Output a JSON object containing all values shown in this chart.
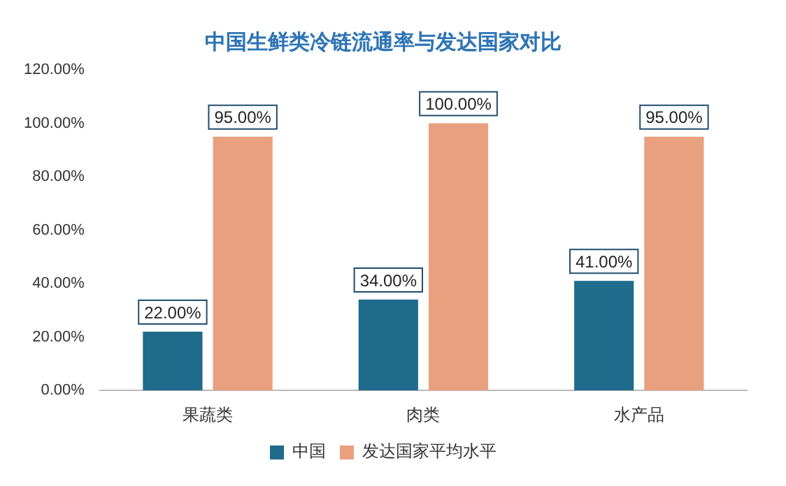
{
  "chart_data": {
    "type": "bar",
    "title": "中国生鲜类冷链流通率与发达国家对比",
    "categories": [
      "果蔬类",
      "肉类",
      "水产品"
    ],
    "series": [
      {
        "name": "中国",
        "color": "#1f6b8c",
        "values": [
          22,
          34,
          41
        ],
        "value_labels": [
          "22.00%",
          "34.00%",
          "41.00%"
        ]
      },
      {
        "name": "发达国家平均水平",
        "color": "#e9a07f",
        "values": [
          95,
          100,
          95
        ],
        "value_labels": [
          "95.00%",
          "100.00%",
          "95.00%"
        ]
      }
    ],
    "ylim": [
      0,
      120
    ],
    "yticks": [
      {
        "value": 0,
        "label": "0.00%"
      },
      {
        "value": 20,
        "label": "20.00%"
      },
      {
        "value": 40,
        "label": "40.00%"
      },
      {
        "value": 60,
        "label": "60.00%"
      },
      {
        "value": 80,
        "label": "80.00%"
      },
      {
        "value": 100,
        "label": "100.00%"
      },
      {
        "value": 120,
        "label": "120.00%"
      }
    ],
    "grid": false,
    "legend": "bottom"
  }
}
